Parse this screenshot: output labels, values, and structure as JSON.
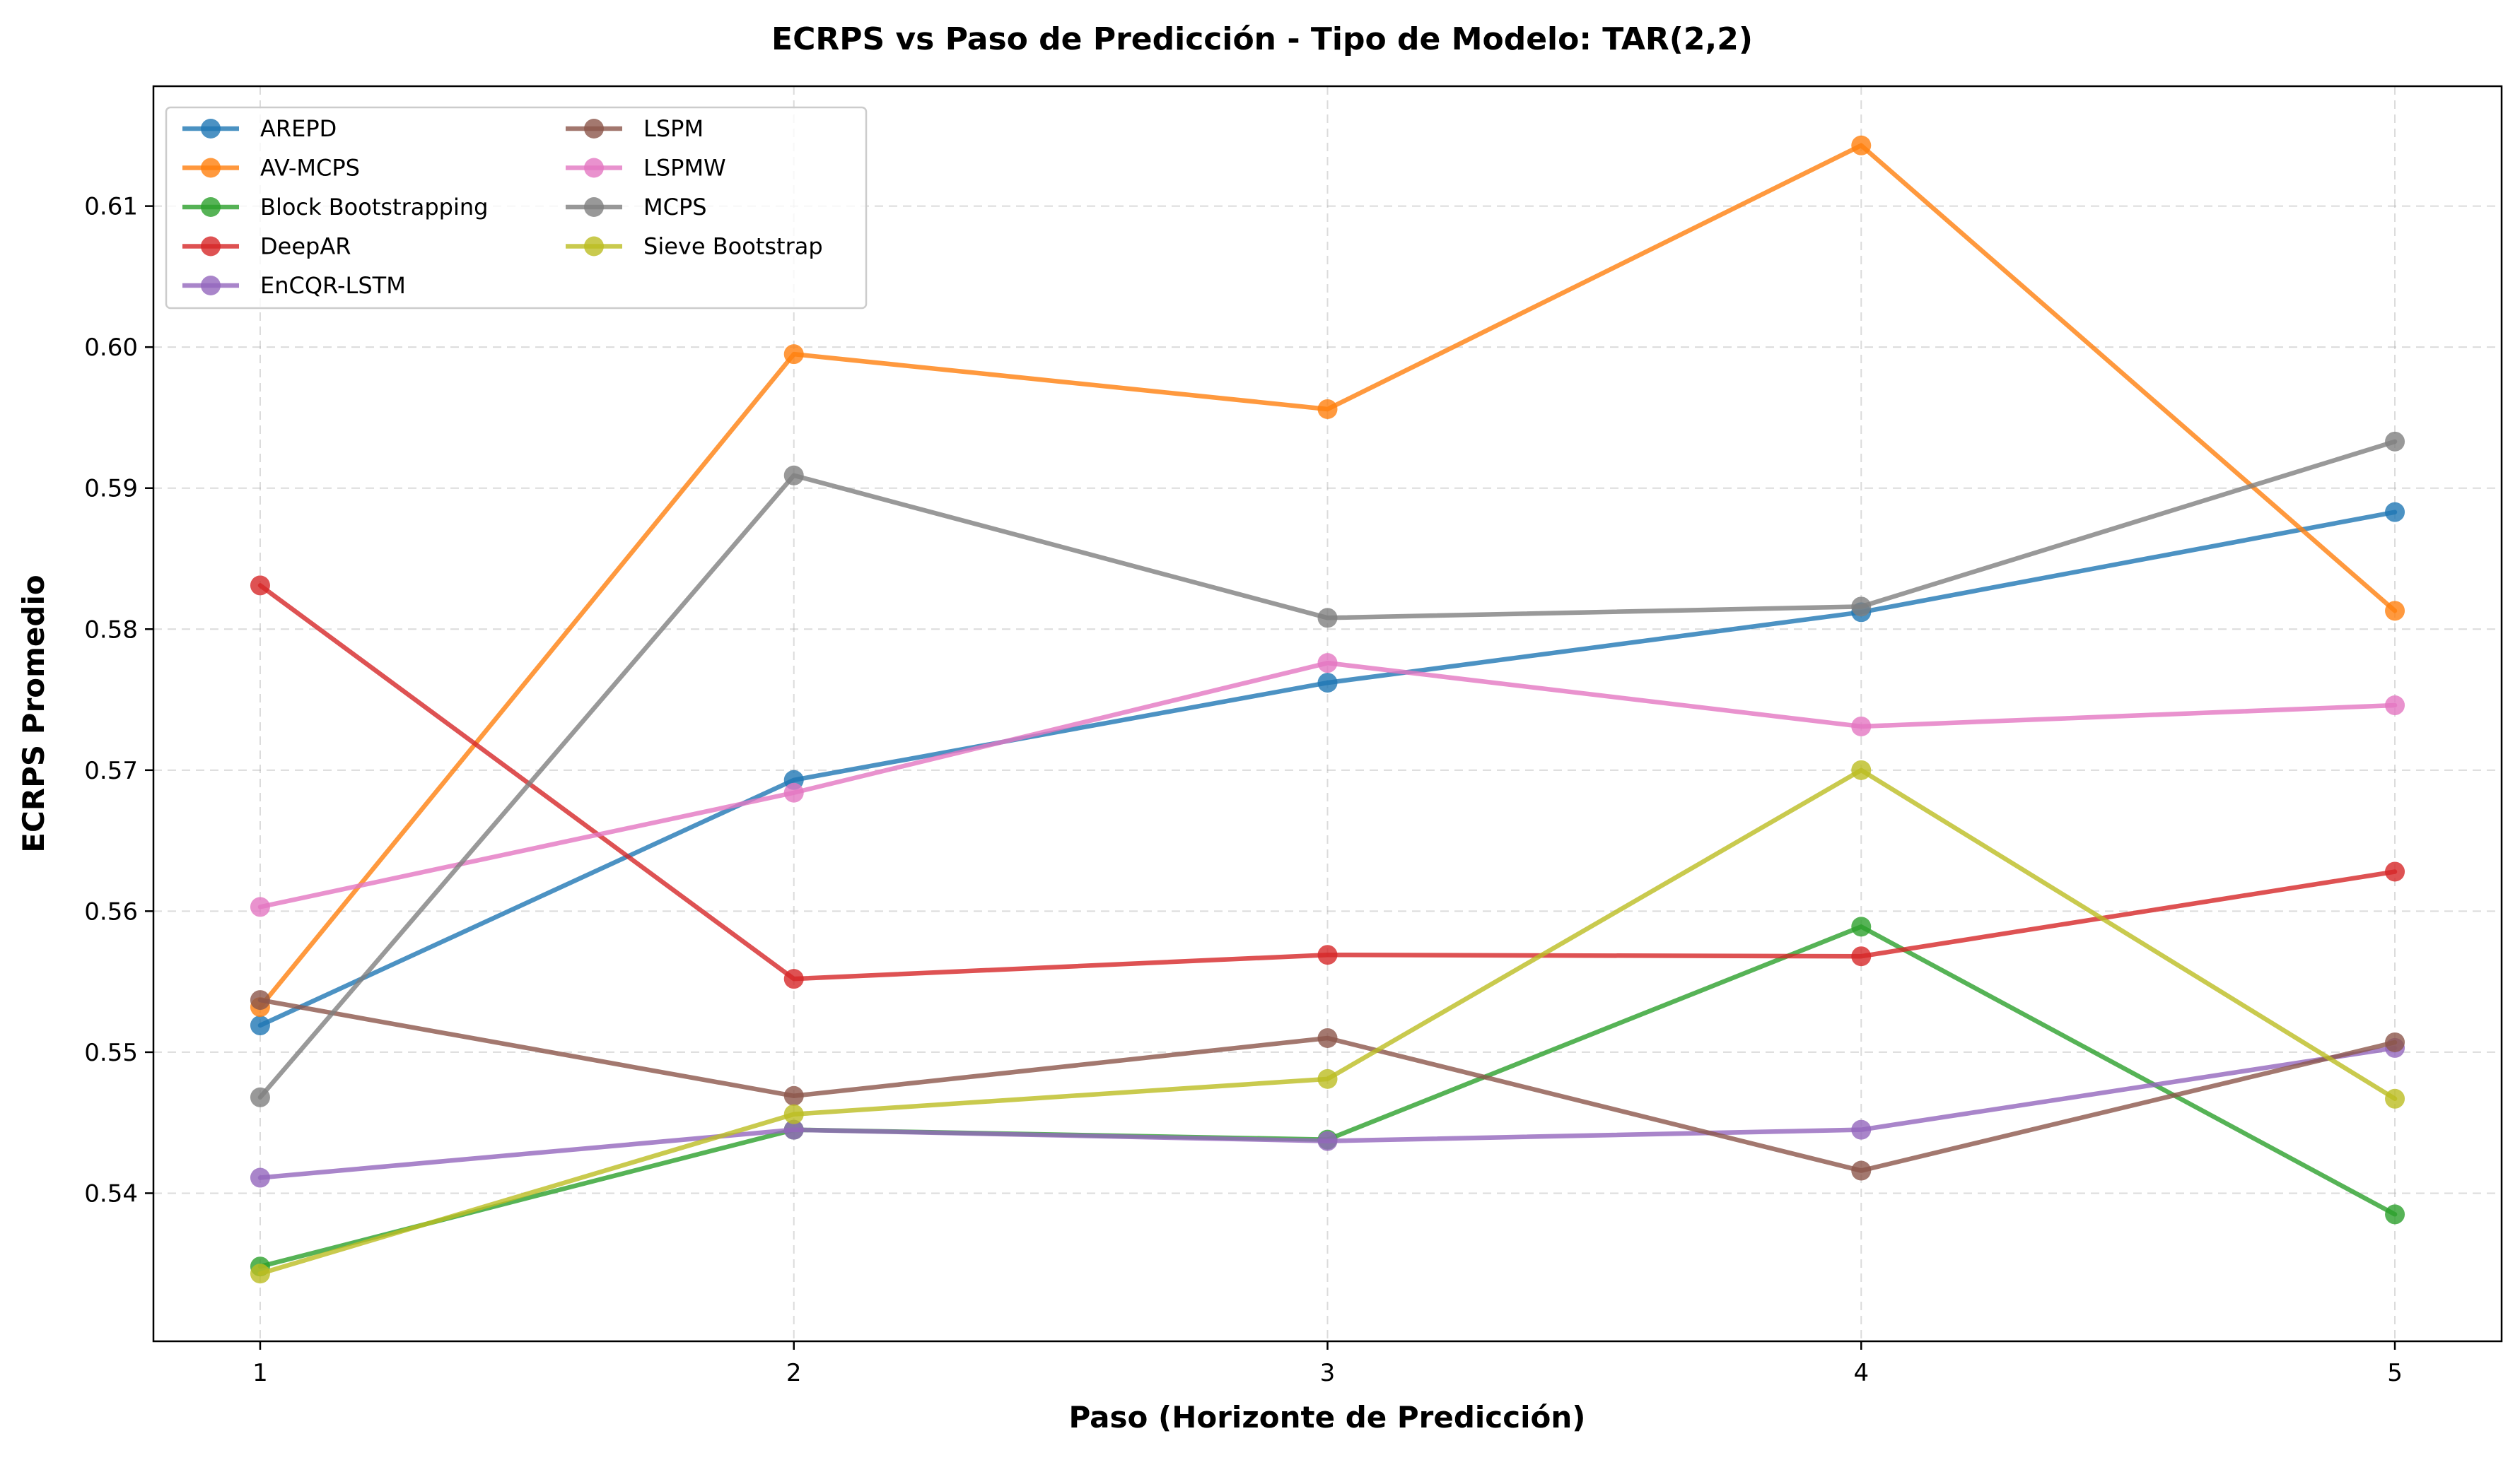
{
  "chart_data": {
    "type": "line",
    "title": "ECRPS vs Paso de Predicción - Tipo de Modelo: TAR(2,2)",
    "xlabel": "Paso (Horizonte de Predicción)",
    "ylabel": "ECRPS Promedio",
    "x": [
      1,
      2,
      3,
      4,
      5
    ],
    "x_ticks": [
      "1",
      "2",
      "3",
      "4",
      "5"
    ],
    "xlim": [
      0.8,
      5.2
    ],
    "ylim": [
      0.5295,
      0.6185
    ],
    "y_ticks": [
      "0.54",
      "0.55",
      "0.56",
      "0.57",
      "0.58",
      "0.59",
      "0.60",
      "0.61"
    ],
    "y_tick_values": [
      0.54,
      0.55,
      0.56,
      0.57,
      0.58,
      0.59,
      0.6,
      0.61
    ],
    "grid": true,
    "legend_position": "top-left",
    "legend_columns": 2,
    "series": [
      {
        "name": "AREPD",
        "color": "#1f77b4",
        "values": [
          0.5519,
          0.5693,
          0.5762,
          0.5812,
          0.5883
        ]
      },
      {
        "name": "AV-MCPS",
        "color": "#ff7f0e",
        "values": [
          0.5532,
          0.5995,
          0.5956,
          0.6143,
          0.5813
        ]
      },
      {
        "name": "Block Bootstrapping",
        "color": "#2ca02c",
        "values": [
          0.5348,
          0.5445,
          0.5438,
          0.5589,
          0.5385
        ]
      },
      {
        "name": "DeepAR",
        "color": "#d62728",
        "values": [
          0.5831,
          0.5552,
          0.5569,
          0.5568,
          0.5628
        ]
      },
      {
        "name": "EnCQR-LSTM",
        "color": "#9467bd",
        "values": [
          0.5411,
          0.5445,
          0.5437,
          0.5445,
          0.5503
        ]
      },
      {
        "name": "LSPM",
        "color": "#8c564b",
        "values": [
          0.5537,
          0.5469,
          0.551,
          0.5416,
          0.5507
        ]
      },
      {
        "name": "LSPMW",
        "color": "#e377c2",
        "values": [
          0.5603,
          0.5684,
          0.5776,
          0.5731,
          0.5746
        ]
      },
      {
        "name": "MCPS",
        "color": "#7f7f7f",
        "values": [
          0.5468,
          0.5909,
          0.5808,
          0.5816,
          0.5933
        ]
      },
      {
        "name": "Sieve Bootstrap",
        "color": "#bcbd22",
        "values": [
          0.5343,
          0.5456,
          0.5481,
          0.57,
          0.5467
        ]
      }
    ]
  }
}
